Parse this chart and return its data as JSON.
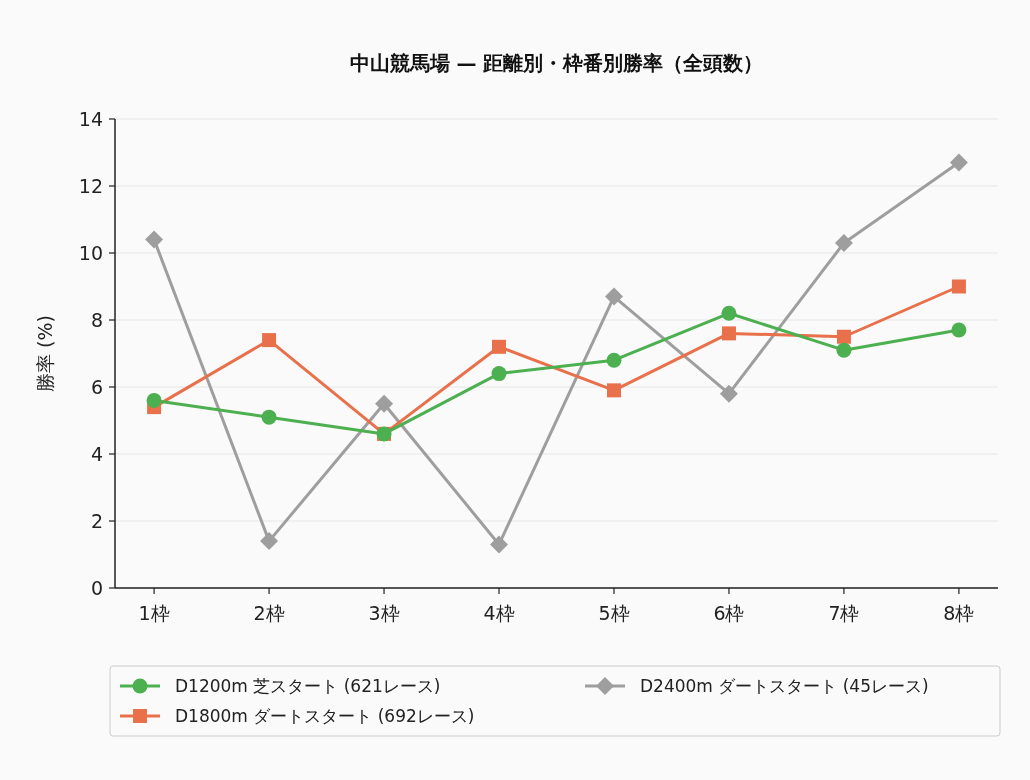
{
  "chart_data": {
    "type": "line",
    "title": "中山競馬場 — 距離別・枠番別勝率（全頭数）",
    "ylabel": "勝率 (%)",
    "categories": [
      "1枠",
      "2枠",
      "3枠",
      "4枠",
      "5枠",
      "6枠",
      "7枠",
      "8枠"
    ],
    "ylim": [
      0,
      14
    ],
    "yticks": [
      0,
      2,
      4,
      6,
      8,
      10,
      12,
      14
    ],
    "grid": "y",
    "legend": "bottom",
    "series": [
      {
        "name": "D1200m 芝スタート (621レース)",
        "color": "#4caf50",
        "marker": "circle",
        "values": [
          5.6,
          5.1,
          4.6,
          6.4,
          6.8,
          8.2,
          7.1,
          7.7
        ]
      },
      {
        "name": "D1800m ダートスタート (692レース)",
        "color": "#e8704a",
        "marker": "square",
        "values": [
          5.4,
          7.4,
          4.6,
          7.2,
          5.9,
          7.6,
          7.5,
          9.0
        ]
      },
      {
        "name": "D2400m ダートスタート (45レース)",
        "color": "#9e9e9e",
        "marker": "diamond",
        "values": [
          10.4,
          1.4,
          5.5,
          1.3,
          8.7,
          5.8,
          10.3,
          12.7
        ]
      }
    ]
  }
}
